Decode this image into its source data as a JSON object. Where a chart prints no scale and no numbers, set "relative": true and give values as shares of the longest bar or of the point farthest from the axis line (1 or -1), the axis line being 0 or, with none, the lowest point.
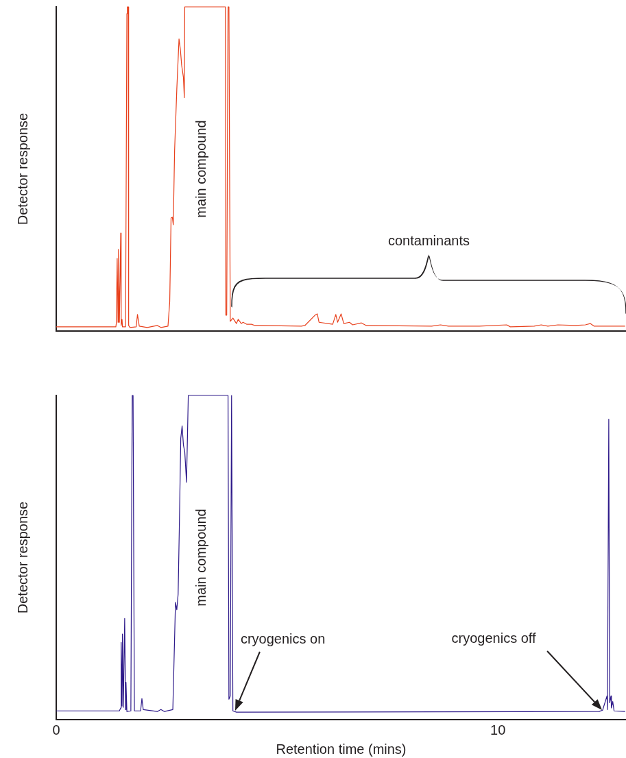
{
  "chart_data": [
    {
      "type": "line",
      "relative": true,
      "ylabel": "Detector response",
      "xlim": [
        0,
        12.9
      ],
      "tick_labels": false,
      "marker": "none",
      "line_style": "solid",
      "series": [
        {
          "color": "#e8401c",
          "x": [
            0,
            1.35,
            1.36,
            1.38,
            1.4,
            1.41,
            1.43,
            1.46,
            1.47,
            1.49,
            1.5,
            1.57,
            1.6,
            1.61,
            1.63,
            1.64,
            1.67,
            1.81,
            1.84,
            1.88,
            2.06,
            2.29,
            2.37,
            2.53,
            2.57,
            2.6,
            2.63,
            2.65,
            2.68,
            2.73,
            2.78,
            2.81,
            2.84,
            2.88,
            2.9,
            2.91,
            3.83,
            3.84,
            3.86,
            3.89,
            3.91,
            3.94,
            4.0,
            4.08,
            4.12,
            4.19,
            4.23,
            4.31,
            4.42,
            4.5,
            4.62,
            5.55,
            5.63,
            5.86,
            5.91,
            5.95,
            6.26,
            6.33,
            6.37,
            6.45,
            6.51,
            6.64,
            6.71,
            6.91,
            7.02,
            8.5,
            8.7,
            8.88,
            9.58,
            10.2,
            10.28,
            10.82,
            10.98,
            11.13,
            11.36,
            11.75,
            11.98,
            12.09,
            12.18,
            12.88
          ],
          "values": [
            0.013,
            0.013,
            0.023,
            0.224,
            0.027,
            0.252,
            0.027,
            0.302,
            0.017,
            0.036,
            0.013,
            0.013,
            0.979,
            1,
            1,
            0.017,
            0.011,
            0.013,
            0.051,
            0.015,
            0.011,
            0.017,
            0.011,
            0.015,
            0.091,
            0.349,
            0.351,
            0.328,
            0.556,
            0.746,
            0.901,
            0.87,
            0.82,
            0.782,
            0.72,
            1,
            1,
            0.049,
            0.049,
            1,
            1,
            0.03,
            0.04,
            0.023,
            0.036,
            0.023,
            0.027,
            0.021,
            0.021,
            0.017,
            0.017,
            0.015,
            0.017,
            0.049,
            0.053,
            0.027,
            0.021,
            0.051,
            0.027,
            0.053,
            0.023,
            0.027,
            0.019,
            0.025,
            0.017,
            0.015,
            0.019,
            0.015,
            0.015,
            0.019,
            0.013,
            0.015,
            0.019,
            0.015,
            0.019,
            0.017,
            0.019,
            0.023,
            0.015,
            0.015
          ]
        }
      ],
      "annotations": [
        "main compound",
        "contaminants"
      ]
    },
    {
      "type": "line",
      "relative": true,
      "ylabel": "Detector response",
      "xlabel": "Retention time (mins)",
      "xlim": [
        0,
        12.9
      ],
      "xticks": [
        0,
        10
      ],
      "tick_labels": "x",
      "marker": "none",
      "line_style": "solid",
      "series": [
        {
          "color": "#2e1a8a",
          "x": [
            0,
            1.43,
            1.46,
            1.47,
            1.49,
            1.5,
            1.52,
            1.55,
            1.57,
            1.58,
            1.6,
            1.69,
            1.72,
            1.74,
            1.77,
            1.91,
            1.94,
            1.97,
            2.29,
            2.37,
            2.45,
            2.64,
            2.7,
            2.73,
            2.76,
            2.79,
            2.82,
            2.85,
            2.88,
            2.91,
            2.95,
            2.99,
            3.89,
            3.91,
            3.94,
            3.97,
            4.0,
            4.08,
            12.29,
            12.37,
            12.47,
            12.48,
            12.51,
            12.53,
            12.56,
            12.57,
            12.6,
            12.63,
            12.88
          ],
          "values": [
            0.027,
            0.027,
            0.036,
            0.238,
            0.042,
            0.264,
            0.038,
            0.312,
            0.031,
            0.115,
            0.025,
            0.027,
            1,
            1,
            0.027,
            0.027,
            0.065,
            0.031,
            0.025,
            0.031,
            0.025,
            0.031,
            0.362,
            0.339,
            0.387,
            0.617,
            0.868,
            0.906,
            0.847,
            0.826,
            0.732,
            1,
            1,
            0.063,
            0.073,
            1,
            0.027,
            0.023,
            0.025,
            0.029,
            0.073,
            0.031,
            0.927,
            0.052,
            0.073,
            0.036,
            0.056,
            0.027,
            0.025
          ]
        }
      ],
      "annotations": [
        "main compound",
        "cryogenics on",
        "cryogenics off"
      ]
    }
  ]
}
